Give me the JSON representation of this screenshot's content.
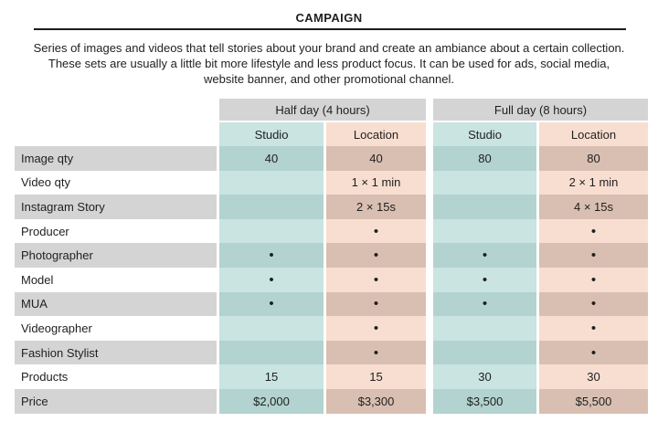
{
  "page": {
    "title": "CAMPAIGN"
  },
  "description": {
    "lines": [
      "Series of images and videos that tell stories about your brand and create an ambiance about a certain collection.",
      "These sets are usually a little bit more lifestyle and less product focus. It can be used for ads, social media,",
      "website banner, and other promotional channel."
    ]
  },
  "colors": {
    "header_gray": "#d4d4d4",
    "studio_light": "#c9e4e1",
    "studio_dark": "#b2d3cf",
    "location_light": "#f8ded0",
    "location_dark": "#d9bfb1",
    "rule": "#1c1c1c",
    "text": "#1f1f1f"
  },
  "table": {
    "group_headers": [
      "Half day (4 hours)",
      "Full day (8 hours)"
    ],
    "column_headers": [
      "Studio",
      "Location",
      "Studio",
      "Location"
    ],
    "included_marker": "•",
    "rows": [
      {
        "label": "Image qty",
        "values": [
          "40",
          "40",
          "80",
          "80"
        ]
      },
      {
        "label": "Video qty",
        "values": [
          "",
          "1 × 1 min",
          "",
          "2 × 1 min"
        ]
      },
      {
        "label": "Instagram Story",
        "values": [
          "",
          "2 × 15s",
          "",
          "4 × 15s"
        ]
      },
      {
        "label": "Producer",
        "values": [
          "",
          "•",
          "",
          "•"
        ]
      },
      {
        "label": "Photographer",
        "values": [
          "•",
          "•",
          "•",
          "•"
        ]
      },
      {
        "label": "Model",
        "values": [
          "•",
          "•",
          "•",
          "•"
        ]
      },
      {
        "label": "MUA",
        "values": [
          "•",
          "•",
          "•",
          "•"
        ]
      },
      {
        "label": "Videographer",
        "values": [
          "",
          "•",
          "",
          "•"
        ]
      },
      {
        "label": "Fashion Stylist",
        "values": [
          "",
          "•",
          "",
          "•"
        ]
      },
      {
        "label": "Products",
        "values": [
          "15",
          "15",
          "30",
          "30"
        ]
      },
      {
        "label": "Price",
        "values": [
          "$2,000",
          "$3,300",
          "$3,500",
          "$5,500"
        ]
      }
    ]
  }
}
